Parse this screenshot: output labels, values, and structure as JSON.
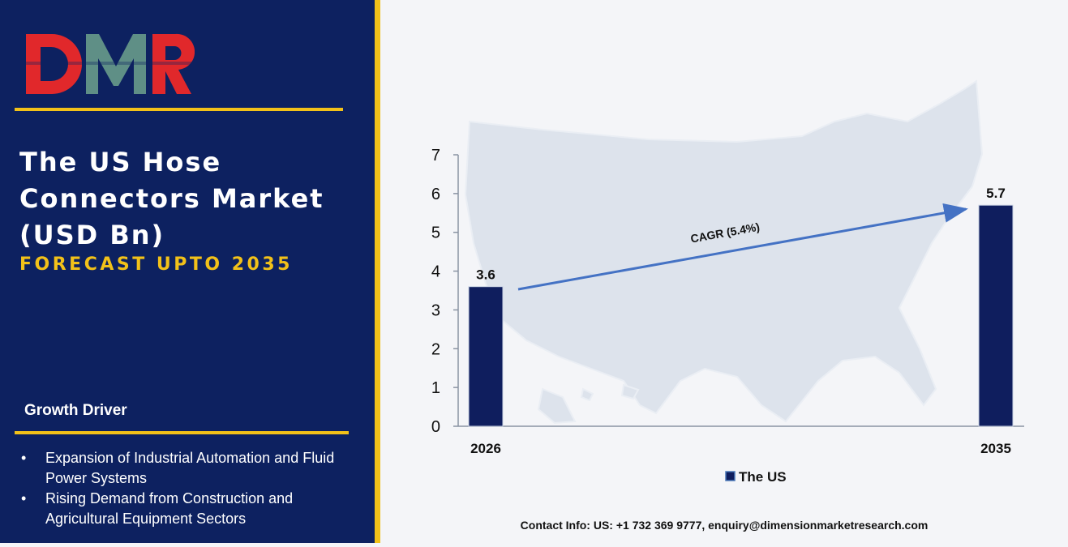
{
  "brand": {
    "logo_text": "DMR",
    "colors": {
      "navy": "#0d2160",
      "yellow": "#f2c119",
      "logo_red": "#e1282b",
      "logo_teal": "#5f8f86"
    }
  },
  "header": {
    "title_lines": [
      "The US Hose",
      "Connectors Market",
      "(USD Bn)"
    ],
    "subtitle": "FORECAST UPTO 2035"
  },
  "growth": {
    "heading": "Growth Driver",
    "items": [
      "Expansion of Industrial Automation and Fluid Power Systems",
      "Rising Demand from Construction and Agricultural Equipment Sectors"
    ]
  },
  "chart_data": {
    "type": "bar",
    "categories": [
      "2026",
      "2035"
    ],
    "series": [
      {
        "name": "The US",
        "values": [
          3.6,
          5.7
        ],
        "color": "#0f1e5e"
      }
    ],
    "ylim": [
      0,
      7
    ],
    "yticks": [
      0,
      1,
      2,
      3,
      4,
      5,
      6,
      7
    ],
    "annotation": "CAGR (5.4%)",
    "legend_position": "bottom",
    "background": "us-map-silhouette"
  },
  "footer": {
    "contact": "Contact Info: US: +1 732 369 9777, enquiry@dimensionmarketresearch.com"
  }
}
